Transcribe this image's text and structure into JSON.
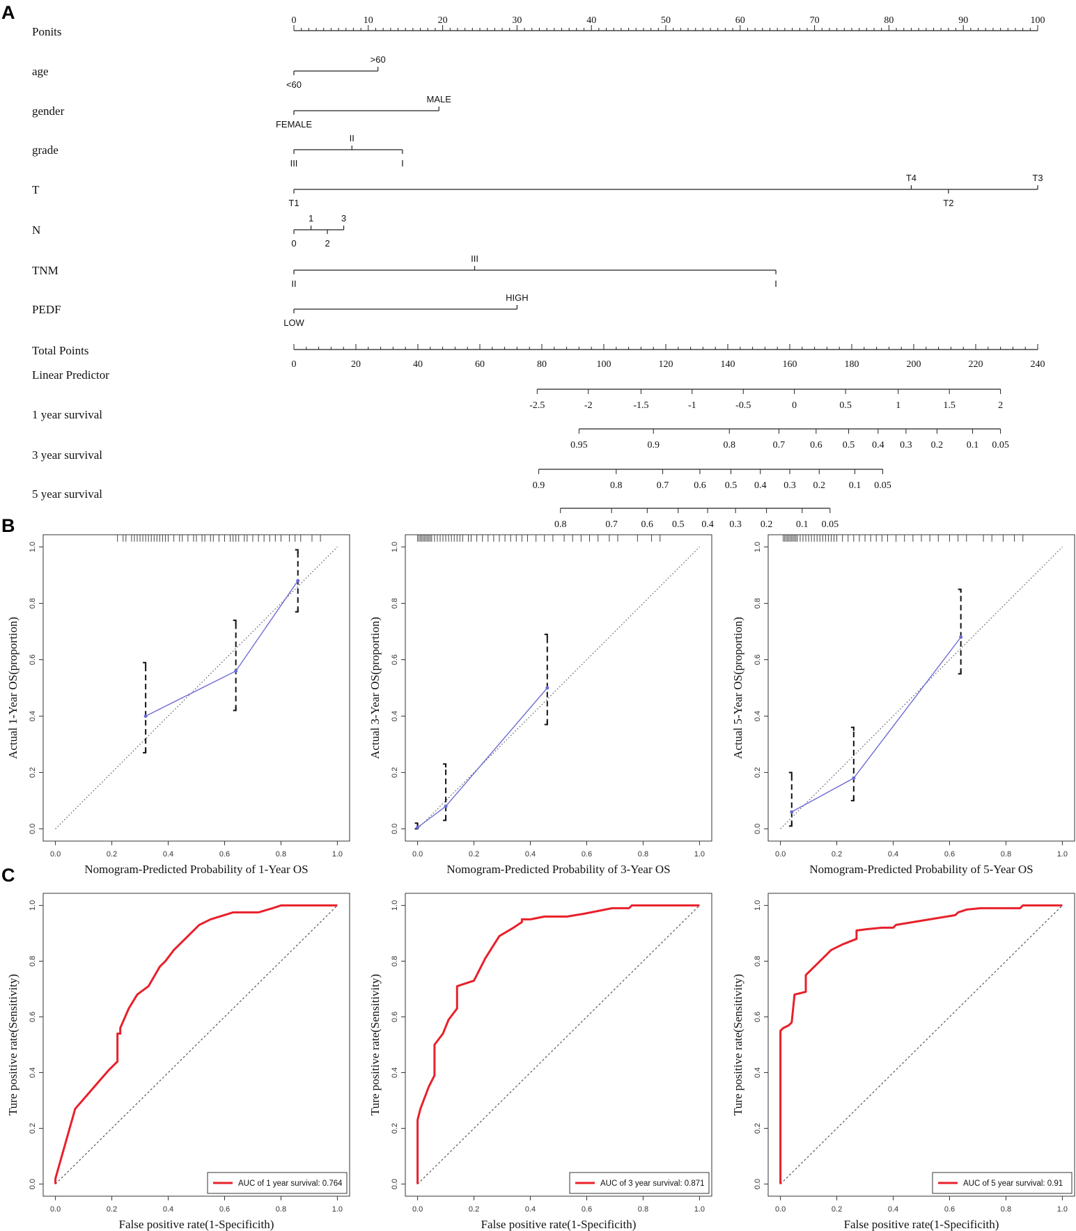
{
  "panel_labels": {
    "a": "A",
    "b": "B",
    "c": "C"
  },
  "colors": {
    "axis": "#222222",
    "calibration": "#6b6bd6",
    "roc": "#e8202a",
    "reference": "#555555"
  },
  "chart_data": [
    {
      "type": "nomogram",
      "id": "A",
      "points_scale": {
        "label": "Ponits",
        "min": 0,
        "max": 100,
        "major_step": 10,
        "minor_step": 1
      },
      "variables": [
        {
          "label": "age",
          "levels": [
            {
              "label": "<60",
              "points": 0,
              "side": "below"
            },
            {
              "label": ">60",
              "points": 11.3,
              "side": "above"
            }
          ]
        },
        {
          "label": "gender",
          "levels": [
            {
              "label": "FEMALE",
              "points": 0,
              "side": "below"
            },
            {
              "label": "MALE",
              "points": 19.5,
              "side": "above"
            }
          ]
        },
        {
          "label": "grade",
          "levels": [
            {
              "label": "III",
              "points": 0,
              "side": "below"
            },
            {
              "label": "II",
              "points": 7.8,
              "side": "above"
            },
            {
              "label": "I",
              "points": 14.6,
              "side": "below"
            }
          ]
        },
        {
          "label": "T",
          "levels": [
            {
              "label": "T1",
              "points": 0,
              "side": "below"
            },
            {
              "label": "T4",
              "points": 83,
              "side": "above"
            },
            {
              "label": "T2",
              "points": 88,
              "side": "below"
            },
            {
              "label": "T3",
              "points": 100,
              "side": "above"
            }
          ]
        },
        {
          "label": "N",
          "levels": [
            {
              "label": "0",
              "points": 0,
              "side": "below"
            },
            {
              "label": "1",
              "points": 2.3,
              "side": "above"
            },
            {
              "label": "2",
              "points": 4.5,
              "side": "below"
            },
            {
              "label": "3",
              "points": 6.7,
              "side": "above"
            }
          ]
        },
        {
          "label": "TNM",
          "levels": [
            {
              "label": "II",
              "points": 0,
              "side": "below"
            },
            {
              "label": "III",
              "points": 24.3,
              "side": "above"
            },
            {
              "label": "I",
              "points": 64.8,
              "side": "below"
            }
          ]
        },
        {
          "label": "PEDF",
          "levels": [
            {
              "label": "LOW",
              "points": 0,
              "side": "below"
            },
            {
              "label": "HIGH",
              "points": 30,
              "side": "above"
            }
          ]
        }
      ],
      "total_points_scale": {
        "label": "Total Points",
        "min": 0,
        "max": 240,
        "major_step": 20,
        "minor_step": 4
      },
      "linear_predictor": {
        "label": "Linear Predictor",
        "ticks": [
          {
            "label": "-2.5",
            "total_points": 78.5
          },
          {
            "label": "-2",
            "total_points": 95
          },
          {
            "label": "-1.5",
            "total_points": 112
          },
          {
            "label": "-1",
            "total_points": 128.5
          },
          {
            "label": "-0.5",
            "total_points": 145
          },
          {
            "label": "0",
            "total_points": 161.5
          },
          {
            "label": "0.5",
            "total_points": 178
          },
          {
            "label": "1",
            "total_points": 195
          },
          {
            "label": "1.5",
            "total_points": 211.5
          },
          {
            "label": "2",
            "total_points": 228
          }
        ]
      },
      "survival_scales": [
        {
          "label": "1 year survival",
          "ticks": [
            {
              "label": "0.95",
              "total_points": 92
            },
            {
              "label": "0.9",
              "total_points": 116
            },
            {
              "label": "0.8",
              "total_points": 140.5
            },
            {
              "label": "0.7",
              "total_points": 156.5
            },
            {
              "label": "0.6",
              "total_points": 168.5
            },
            {
              "label": "0.5",
              "total_points": 179
            },
            {
              "label": "0.4",
              "total_points": 188.5
            },
            {
              "label": "0.3",
              "total_points": 197.5
            },
            {
              "label": "0.2",
              "total_points": 207.5
            },
            {
              "label": "0.1",
              "total_points": 219
            },
            {
              "label": "0.05",
              "total_points": 228
            }
          ]
        },
        {
          "label": "3 year survival",
          "ticks": [
            {
              "label": "0.9",
              "total_points": 79
            },
            {
              "label": "0.8",
              "total_points": 104
            },
            {
              "label": "0.7",
              "total_points": 119
            },
            {
              "label": "0.6",
              "total_points": 131
            },
            {
              "label": "0.5",
              "total_points": 141
            },
            {
              "label": "0.4",
              "total_points": 150.5
            },
            {
              "label": "0.3",
              "total_points": 160
            },
            {
              "label": "0.2",
              "total_points": 169.5
            },
            {
              "label": "0.1",
              "total_points": 181
            },
            {
              "label": "0.05",
              "total_points": 190
            }
          ]
        },
        {
          "label": "5 year survival",
          "ticks": [
            {
              "label": "0.8",
              "total_points": 86
            },
            {
              "label": "0.7",
              "total_points": 102.5
            },
            {
              "label": "0.6",
              "total_points": 114
            },
            {
              "label": "0.5",
              "total_points": 124
            },
            {
              "label": "0.4",
              "total_points": 133.5
            },
            {
              "label": "0.3",
              "total_points": 142.5
            },
            {
              "label": "0.2",
              "total_points": 152.5
            },
            {
              "label": "0.1",
              "total_points": 164
            },
            {
              "label": "0.05",
              "total_points": 173
            }
          ]
        }
      ]
    },
    {
      "type": "calibration",
      "id": "B1",
      "xlabel": "Nomogram-Predicted Probability of 1-Year OS",
      "ylabel": "Actual 1-Year OS(proportion)",
      "xlim": [
        0,
        1
      ],
      "ylim": [
        0,
        1
      ],
      "ticks": [
        "0.0",
        "0.2",
        "0.4",
        "0.6",
        "0.8",
        "1.0"
      ],
      "points": [
        {
          "x": 0.32,
          "y": 0.4,
          "lo": 0.27,
          "hi": 0.59
        },
        {
          "x": 0.64,
          "y": 0.56,
          "lo": 0.42,
          "hi": 0.74
        },
        {
          "x": 0.86,
          "y": 0.88,
          "lo": 0.77,
          "hi": 0.99
        }
      ],
      "rug": [
        0.22,
        0.24,
        0.25,
        0.27,
        0.28,
        0.29,
        0.3,
        0.31,
        0.32,
        0.33,
        0.34,
        0.35,
        0.36,
        0.37,
        0.38,
        0.39,
        0.4,
        0.42,
        0.44,
        0.45,
        0.47,
        0.49,
        0.5,
        0.52,
        0.53,
        0.55,
        0.56,
        0.58,
        0.6,
        0.62,
        0.63,
        0.64,
        0.65,
        0.67,
        0.68,
        0.7,
        0.72,
        0.74,
        0.76,
        0.78,
        0.8,
        0.83,
        0.85,
        0.87,
        0.91,
        0.94
      ]
    },
    {
      "type": "calibration",
      "id": "B2",
      "xlabel": "Nomogram-Predicted Probability of 3-Year OS",
      "ylabel": "Actual 3-Year OS(proportion)",
      "xlim": [
        0,
        1
      ],
      "ylim": [
        0,
        1
      ],
      "ticks": [
        "0.0",
        "0.2",
        "0.4",
        "0.6",
        "0.8",
        "1.0"
      ],
      "points": [
        {
          "x": 0.0,
          "y": 0.005,
          "lo": 0.0,
          "hi": 0.02
        },
        {
          "x": 0.1,
          "y": 0.08,
          "lo": 0.03,
          "hi": 0.23
        },
        {
          "x": 0.46,
          "y": 0.5,
          "lo": 0.37,
          "hi": 0.69
        }
      ],
      "rug": [
        0.0,
        0.005,
        0.01,
        0.015,
        0.02,
        0.025,
        0.03,
        0.035,
        0.04,
        0.045,
        0.05,
        0.06,
        0.07,
        0.08,
        0.09,
        0.1,
        0.11,
        0.12,
        0.13,
        0.14,
        0.15,
        0.16,
        0.18,
        0.19,
        0.21,
        0.23,
        0.25,
        0.27,
        0.29,
        0.31,
        0.33,
        0.35,
        0.37,
        0.39,
        0.42,
        0.45,
        0.48,
        0.52,
        0.55,
        0.58,
        0.61,
        0.64,
        0.68,
        0.71,
        0.78,
        0.83,
        0.86
      ]
    },
    {
      "type": "calibration",
      "id": "B3",
      "xlabel": "Nomogram-Predicted Probability of 5-Year OS",
      "ylabel": "Actual 5-Year OS(proportion)",
      "xlim": [
        0,
        1
      ],
      "ylim": [
        0,
        1
      ],
      "ticks": [
        "0.0",
        "0.2",
        "0.4",
        "0.6",
        "0.8",
        "1.0"
      ],
      "points": [
        {
          "x": 0.04,
          "y": 0.06,
          "lo": 0.01,
          "hi": 0.2
        },
        {
          "x": 0.26,
          "y": 0.18,
          "lo": 0.1,
          "hi": 0.36
        },
        {
          "x": 0.64,
          "y": 0.68,
          "lo": 0.55,
          "hi": 0.85
        }
      ],
      "rug": [
        0.01,
        0.015,
        0.02,
        0.025,
        0.03,
        0.035,
        0.04,
        0.045,
        0.05,
        0.055,
        0.06,
        0.07,
        0.08,
        0.09,
        0.1,
        0.11,
        0.12,
        0.13,
        0.14,
        0.15,
        0.16,
        0.17,
        0.18,
        0.19,
        0.2,
        0.22,
        0.24,
        0.26,
        0.28,
        0.3,
        0.32,
        0.34,
        0.36,
        0.38,
        0.41,
        0.44,
        0.47,
        0.5,
        0.53,
        0.56,
        0.6,
        0.63,
        0.66,
        0.72,
        0.75,
        0.79,
        0.83,
        0.86
      ]
    },
    {
      "type": "line",
      "id": "C1",
      "xlabel": "False positive rate(1-Specificith)",
      "ylabel": "Ture positive rate(Sensitivity)",
      "xlim": [
        0,
        1
      ],
      "ylim": [
        0,
        1
      ],
      "ticks": [
        "0.0",
        "0.2",
        "0.4",
        "0.6",
        "0.8",
        "1.0"
      ],
      "legend": "AUC of 1 year survival: 0.764",
      "x": [
        0,
        0,
        0.07,
        0.13,
        0.19,
        0.21,
        0.22,
        0.22,
        0.23,
        0.23,
        0.26,
        0.29,
        0.33,
        0.37,
        0.39,
        0.42,
        0.47,
        0.51,
        0.55,
        0.63,
        0.72,
        0.77,
        0.8,
        1.0
      ],
      "y": [
        0,
        0.02,
        0.27,
        0.34,
        0.41,
        0.43,
        0.44,
        0.54,
        0.54,
        0.56,
        0.63,
        0.68,
        0.71,
        0.78,
        0.8,
        0.84,
        0.89,
        0.93,
        0.95,
        0.975,
        0.975,
        0.99,
        1.0,
        1.0
      ]
    },
    {
      "type": "line",
      "id": "C2",
      "xlabel": "False positive rate(1-Specificith)",
      "ylabel": "Ture positive rate(Sensitivity)",
      "xlim": [
        0,
        1
      ],
      "ylim": [
        0,
        1
      ],
      "ticks": [
        "0.0",
        "0.2",
        "0.4",
        "0.6",
        "0.8",
        "1.0"
      ],
      "legend": "AUC of 3 year survival: 0.871",
      "x": [
        0,
        0,
        0.01,
        0.04,
        0.06,
        0.06,
        0.09,
        0.11,
        0.14,
        0.14,
        0.17,
        0.2,
        0.24,
        0.29,
        0.34,
        0.37,
        0.37,
        0.4,
        0.45,
        0.53,
        0.59,
        0.64,
        0.69,
        0.74,
        0.75,
        0.76,
        1.0
      ],
      "y": [
        0,
        0.23,
        0.27,
        0.35,
        0.39,
        0.5,
        0.54,
        0.59,
        0.63,
        0.71,
        0.72,
        0.73,
        0.81,
        0.89,
        0.92,
        0.94,
        0.95,
        0.95,
        0.96,
        0.96,
        0.97,
        0.98,
        0.99,
        0.99,
        0.99,
        1.0,
        1.0
      ],
      "diagonal": true
    },
    {
      "type": "line",
      "id": "C3",
      "xlabel": "False positive rate(1-Specificith)",
      "ylabel": "Ture positive rate(Sensitivity)",
      "xlim": [
        0,
        1
      ],
      "ylim": [
        0,
        1
      ],
      "ticks": [
        "0.0",
        "0.2",
        "0.4",
        "0.6",
        "0.8",
        "1.0"
      ],
      "legend": "AUC of 5 year survival: 0.91",
      "x": [
        0,
        0,
        0.01,
        0.03,
        0.04,
        0.05,
        0.09,
        0.09,
        0.12,
        0.18,
        0.22,
        0.27,
        0.27,
        0.31,
        0.36,
        0.4,
        0.41,
        0.47,
        0.53,
        0.59,
        0.62,
        0.63,
        0.66,
        0.71,
        0.8,
        0.85,
        0.86,
        1.0
      ],
      "y": [
        0,
        0.55,
        0.56,
        0.57,
        0.58,
        0.68,
        0.69,
        0.75,
        0.78,
        0.84,
        0.86,
        0.88,
        0.91,
        0.915,
        0.92,
        0.92,
        0.93,
        0.94,
        0.95,
        0.96,
        0.965,
        0.975,
        0.985,
        0.99,
        0.99,
        0.99,
        1.0,
        1.0
      ]
    }
  ]
}
